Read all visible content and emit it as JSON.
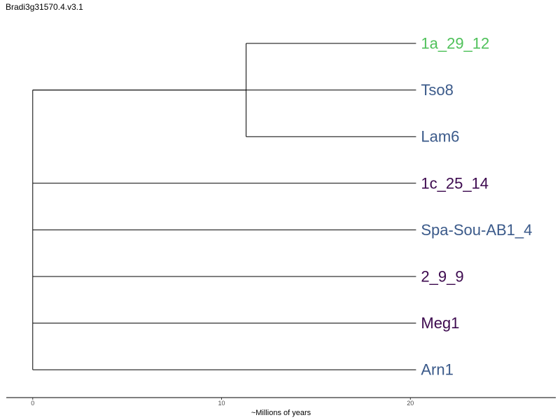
{
  "title": "Bradi3g31570.4.v3.1",
  "chart_data": {
    "type": "dendrogram",
    "x_axis": {
      "label": "~Millions of years",
      "ticks": [
        0,
        10,
        20
      ],
      "range": [
        -1.4,
        27.7
      ]
    },
    "colors": {
      "green": "#4fc15a",
      "blue": "#3b5a8a",
      "purple": "#3d0a4f"
    },
    "tips": [
      {
        "label": "1a_29_12",
        "color": "#4fc15a"
      },
      {
        "label": "Tso8",
        "color": "#3b5a8a"
      },
      {
        "label": "Lam6",
        "color": "#3b5a8a"
      },
      {
        "label": "1c_25_14",
        "color": "#3d0a4f"
      },
      {
        "label": "Spa-Sou-AB1_4",
        "color": "#3b5a8a"
      },
      {
        "label": "2_9_9",
        "color": "#3d0a4f"
      },
      {
        "label": "Meg1",
        "color": "#3d0a4f"
      },
      {
        "label": "Arn1",
        "color": "#3b5a8a"
      }
    ],
    "nodes": [
      {
        "id": "root",
        "age": 0,
        "children": [
          "n1",
          "t1",
          "t3",
          "t4",
          "t5",
          "t6",
          "t7"
        ]
      },
      {
        "id": "n1",
        "age": 11.3,
        "children": [
          "t0",
          "t2"
        ]
      }
    ],
    "tip_age": 20.3
  }
}
